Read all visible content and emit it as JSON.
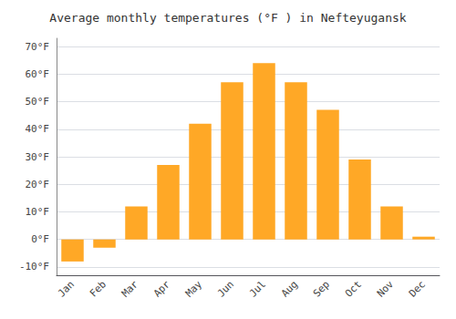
{
  "chart_data": {
    "type": "bar",
    "title": "Average monthly temperatures (°F ) in Nefteyugansk",
    "categories": [
      "Jan",
      "Feb",
      "Mar",
      "Apr",
      "May",
      "Jun",
      "Jul",
      "Aug",
      "Sep",
      "Oct",
      "Nov",
      "Dec"
    ],
    "values": [
      -8,
      -3,
      12,
      27,
      42,
      57,
      64,
      57,
      47,
      29,
      12,
      1
    ],
    "color": "#FFA826",
    "ylim": [
      -13,
      73
    ],
    "yticks": [
      {
        "value": -10,
        "label": "-10°F"
      },
      {
        "value": 0,
        "label": "0°F"
      },
      {
        "value": 10,
        "label": "10°F"
      },
      {
        "value": 20,
        "label": "20°F"
      },
      {
        "value": 30,
        "label": "30°F"
      },
      {
        "value": 40,
        "label": "40°F"
      },
      {
        "value": 50,
        "label": "50°F"
      },
      {
        "value": 60,
        "label": "60°F"
      },
      {
        "value": 70,
        "label": "70°F"
      }
    ],
    "grid": true
  }
}
